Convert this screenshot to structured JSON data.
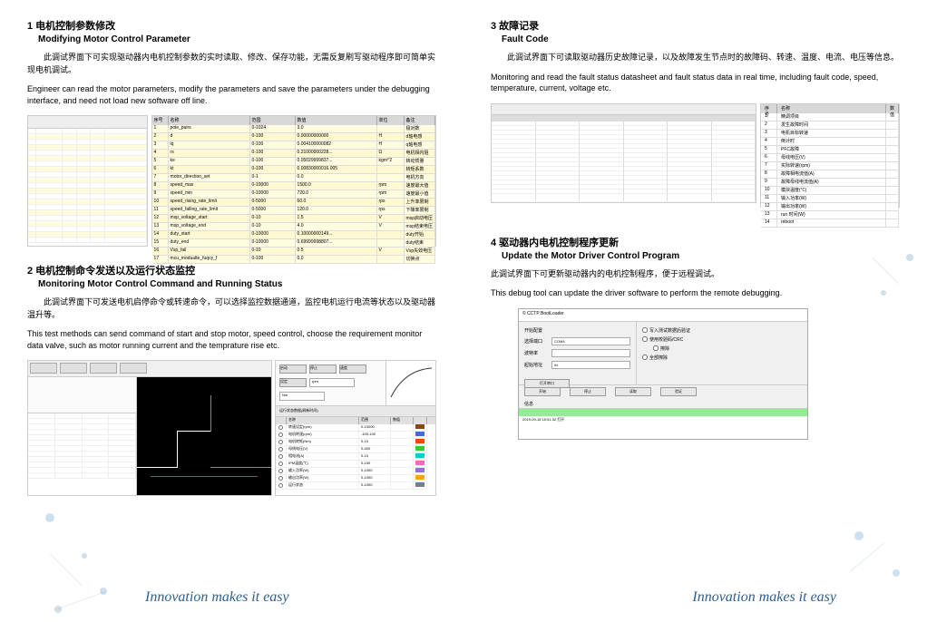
{
  "s1": {
    "title_cn": "1 电机控制参数修改",
    "title_en": "Modifying Motor Control Parameter",
    "desc_cn": "此调试界面下可实现驱动器内电机控制参数的实时读取、修改、保存功能，无需反复刷写驱动程序即可简单实现电机调试。",
    "desc_en": "Engineer can read the motor parameters, modify the parameters and save the parameters under the debugging interface, and need not load new software off line.",
    "table": {
      "headers": [
        "序号",
        "名称",
        "范围",
        "数值",
        "单位",
        "备注"
      ],
      "rows": [
        [
          "1",
          "pole_pairs",
          "0-1024",
          "3.0",
          "",
          "极对数"
        ],
        [
          "2",
          "d",
          "0-100",
          "0.00000000000",
          "H",
          "d轴电感"
        ],
        [
          "3",
          "lq",
          "0-100",
          "0.004100000082",
          "H",
          "q轴电感"
        ],
        [
          "4",
          "rs",
          "0-100",
          "0.21000000228...",
          "Ω",
          "电机相内阻"
        ],
        [
          "5",
          "ke",
          "0-100",
          "0.05029999837...",
          "kgm^2",
          "转动惯量"
        ],
        [
          "6",
          "kt",
          "0-100",
          "0.00830000016.005",
          "",
          "转矩系数"
        ],
        [
          "7",
          "motor_direction_set",
          "0-1",
          "0.0",
          "",
          "电机方向"
        ],
        [
          "8",
          "speed_max",
          "0-10000",
          "1500.0",
          "rpm",
          "速度最大值"
        ],
        [
          "9",
          "speed_min",
          "0-10000",
          "720.0",
          "rpm",
          "速度最小值"
        ],
        [
          "10",
          "speed_rising_rate_limit",
          "0-5000",
          "60.0",
          "rps",
          "上升率限制"
        ],
        [
          "11",
          "speed_falling_rate_limit",
          "0-5000",
          "120.0",
          "rps",
          "下降率限制"
        ],
        [
          "12",
          "msp_voltage_start",
          "0-10",
          "1.5",
          "V",
          "msp启动电压"
        ],
        [
          "13",
          "msp_voltage_end",
          "0-10",
          "4.0",
          "V",
          "msp结束电压"
        ],
        [
          "14",
          "duty_start",
          "0-10000",
          "0.10000000149...",
          "",
          "duty开始"
        ],
        [
          "15",
          "duty_end",
          "0-10000",
          "0.69999998807...",
          "",
          "duty结束"
        ],
        [
          "16",
          "Vsp_fail",
          "0-10",
          "0.5",
          "V",
          "Vsp失效电压"
        ],
        [
          "17",
          "mcu_modualte_fuqcy_f",
          "0-100",
          "0.0",
          "",
          "切换点"
        ]
      ]
    }
  },
  "s2": {
    "title_cn": "2 电机控制命令发送以及运行状态监控",
    "title_en": "Monitoring Motor Control Command and Running Status",
    "desc_cn": "此调试界面下可发送电机启停命令或转速命令，可以选择监控数据通道，监控电机运行电流等状态以及驱动器温升等。",
    "desc_en": "This test methods can send command of start and stop motor, speed control, choose the requirement monitor data valve, such as motor running current and the temprature rise etc.",
    "control_buttons": [
      "启动",
      "停止",
      "速度",
      "设定"
    ],
    "monitor_list": {
      "headers": [
        "",
        "名称",
        "范围",
        "数值",
        ""
      ],
      "rows": [
        {
          "name": "转速设定(rpm)",
          "range": "0-10000",
          "val": "",
          "color": "#8b4513"
        },
        {
          "name": "电机转速(rpm)",
          "range": "-100-100",
          "val": "",
          "color": "#4169e1"
        },
        {
          "name": "电机转矩(Nm)",
          "range": "0-10",
          "val": "",
          "color": "#ff4500"
        },
        {
          "name": "母线电压(V)",
          "range": "0-400",
          "val": "",
          "color": "#32cd32"
        },
        {
          "name": "相电流(A)",
          "range": "0-10",
          "val": "",
          "color": "#00ced1"
        },
        {
          "name": "IPM温度(℃)",
          "range": "0-150",
          "val": "",
          "color": "#ff69b4"
        },
        {
          "name": "输入功率(W)",
          "range": "0-1000",
          "val": "",
          "color": "#9370db"
        },
        {
          "name": "输出功率(W)",
          "range": "0-1000",
          "val": "",
          "color": "#ffa500"
        },
        {
          "name": "运行状态",
          "range": "0-1000",
          "val": "",
          "color": "#708090"
        }
      ]
    }
  },
  "s3": {
    "title_cn": "3 故障记录",
    "title_en": "Fault Code",
    "desc_cn": "此调试界面下可读取驱动器历史故障记录，以及故障发生节点时的故障码、转速、温度、电流、电压等信息。",
    "desc_en": "Monitoring and read the fault status datasheet and fault status data in real time, including fault code, speed, temperature, current, voltage etc.",
    "status_table": {
      "headers": [
        "序号",
        "名称",
        "数值"
      ],
      "rows": [
        [
          "1",
          "精调项目",
          ""
        ],
        [
          "2",
          "发生故障时间",
          ""
        ],
        [
          "3",
          "电机目标转速",
          ""
        ],
        [
          "4",
          "倒计时",
          ""
        ],
        [
          "5",
          "PFC故障",
          ""
        ],
        [
          "6",
          "母线电压(V)",
          ""
        ],
        [
          "7",
          "实际转速(rpm)",
          ""
        ],
        [
          "8",
          "故障相电流值(A)",
          ""
        ],
        [
          "9",
          "故障母线电流值(A)",
          ""
        ],
        [
          "10",
          "模块温度(℃)",
          ""
        ],
        [
          "11",
          "输入功率(W)",
          ""
        ],
        [
          "12",
          "输出功率(W)",
          ""
        ],
        [
          "13",
          "run 时间(W)",
          ""
        ],
        [
          "14",
          "reboot",
          ""
        ]
      ]
    }
  },
  "s4": {
    "title_cn": "4 驱动器内电机控制程序更新",
    "title_en": "Update the Motor Driver Control Program",
    "desc_cn": "此调试界面下可更新驱动器内的电机控制程序，便于远程调试。",
    "desc_en": "This debug tool can update the driver software to perform the remote debugging.",
    "dialog": {
      "title": "© CCTP BootLoader",
      "section_label": "开始配置",
      "port_label": "选择端口",
      "port_value": "COM4",
      "baud_label": "波特率",
      "baud_value": "",
      "addr_label": "起始地址",
      "addr_value": "0x",
      "open_btn": "打开串口",
      "file_section": "写入测试数据",
      "check1": "写入测试数据后验证",
      "check2": "使用校验码/CRC",
      "check3": "擦除",
      "check4": "全部擦除",
      "btn_start": "开始",
      "btn_stop": "停止",
      "btn_read": "读取",
      "btn_verify": "验证",
      "log_label": "信息",
      "log_time": "2019-09-18 15:51:32",
      "log_msg": "打开"
    }
  },
  "tagline": "Innovation makes it easy",
  "colors": {
    "link": "#2b5f8f",
    "row_alt": "#fffce0"
  }
}
